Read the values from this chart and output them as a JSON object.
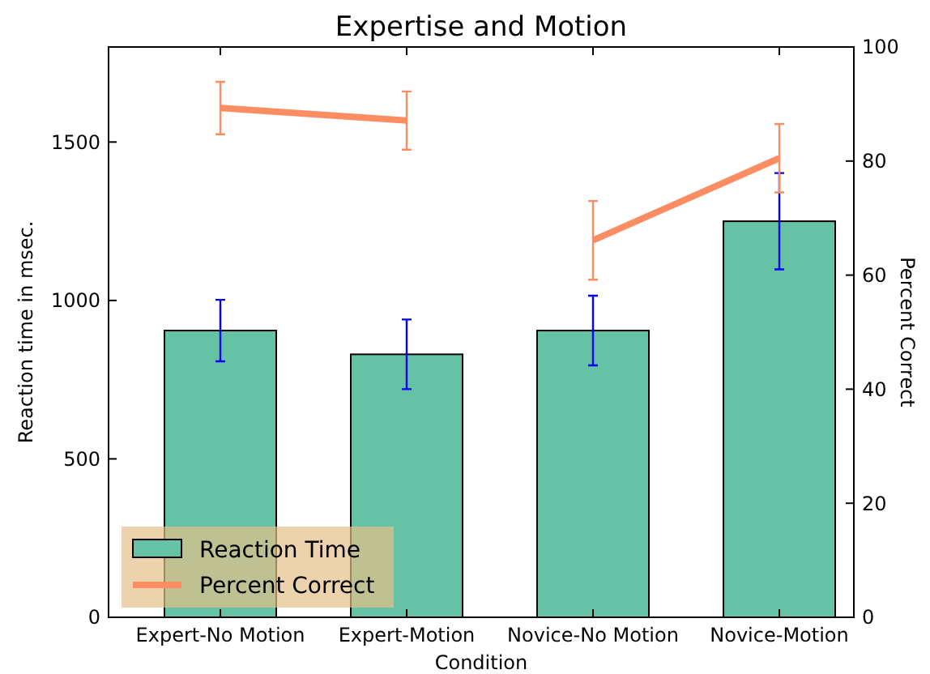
{
  "chart_data": {
    "type": "bar",
    "title": "Expertise and Motion",
    "xlabel": "Condition",
    "ylabel": "Reaction time in msec.",
    "y2label": "Percent Correct",
    "categories": [
      "Expert-No Motion",
      "Expert-Motion",
      "Novice-No Motion",
      "Novice-Motion"
    ],
    "series": [
      {
        "name": "Reaction Time",
        "color": "#66c2a5",
        "values": [
          905,
          830,
          905,
          1250
        ],
        "errors": [
          97,
          110,
          110,
          152
        ]
      },
      {
        "name": "Percent Correct",
        "type": "line",
        "axis": "y2",
        "color": "#fc8d62",
        "x": [
          "Expert-No Motion",
          "Expert-Motion"
        ],
        "values": [
          89.3,
          87.1
        ],
        "errors": [
          4.6,
          5.1
        ]
      },
      {
        "type": "line",
        "axis": "y2",
        "color": "#fc8d63",
        "x": [
          "Novice-No Motion",
          "Novice-Motion"
        ],
        "values": [
          66.1,
          80.5
        ],
        "errors": [
          6.9,
          6
        ]
      }
    ],
    "ylim": [
      0,
      1800
    ],
    "yticks": [
      0,
      500,
      1000,
      1500
    ],
    "y2lim": [
      0,
      100
    ],
    "y2ticks": [
      0,
      20,
      40,
      60,
      80,
      100
    ],
    "legend": "bottom left",
    "grid": false
  }
}
